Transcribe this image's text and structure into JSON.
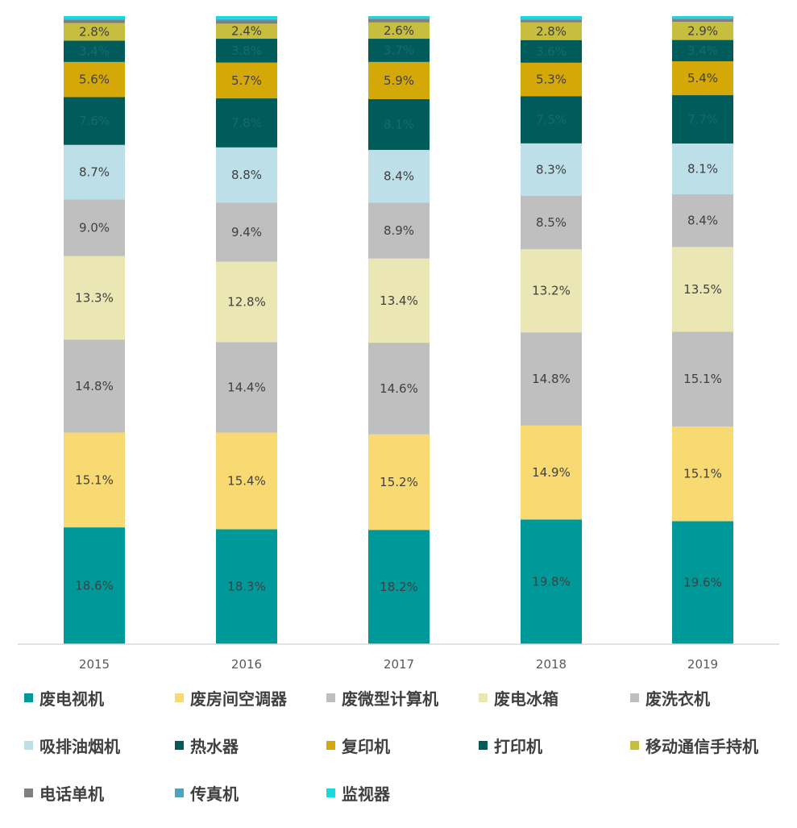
{
  "chart_data": {
    "type": "bar",
    "stacked": true,
    "categories": [
      "2015",
      "2016",
      "2017",
      "2018",
      "2019"
    ],
    "legend_position": "bottom",
    "grid": false,
    "ylim": [
      0,
      100
    ],
    "series": [
      {
        "name": "废电视机",
        "color": "#009999",
        "values": [
          18.6,
          18.3,
          18.2,
          19.8,
          19.6
        ],
        "labels": [
          "18.6%",
          "18.3%",
          "18.2%",
          "19.8%",
          "19.6%"
        ],
        "label_color": "#404040"
      },
      {
        "name": "废房间空调器",
        "color": "#F9DA72",
        "values": [
          15.1,
          15.4,
          15.2,
          14.9,
          15.1
        ],
        "labels": [
          "15.1%",
          "15.4%",
          "15.2%",
          "14.9%",
          "15.1%"
        ],
        "label_color": "#404040"
      },
      {
        "name": "废微型计算机",
        "color": "#BFBFBF",
        "values": [
          14.8,
          14.4,
          14.6,
          14.8,
          15.1
        ],
        "labels": [
          "14.8%",
          "14.4%",
          "14.6%",
          "14.8%",
          "15.1%"
        ],
        "label_color": "#404040"
      },
      {
        "name": "废电冰箱",
        "color": "#EBE7B5",
        "values": [
          13.3,
          12.8,
          13.4,
          13.2,
          13.5
        ],
        "labels": [
          "13.3%",
          "12.8%",
          "13.4%",
          "13.2%",
          "13.5%"
        ],
        "label_color": "#404040"
      },
      {
        "name": "废洗衣机",
        "color": "#BFBFBF",
        "values": [
          9.0,
          9.4,
          8.9,
          8.5,
          8.4
        ],
        "labels": [
          "9.0%",
          "9.4%",
          "8.9%",
          "8.5%",
          "8.4%"
        ],
        "label_color": "#404040"
      },
      {
        "name": "吸排油烟机",
        "color": "#BDDFE8",
        "values": [
          8.7,
          8.8,
          8.4,
          8.3,
          8.1
        ],
        "labels": [
          "8.7%",
          "8.8%",
          "8.4%",
          "8.3%",
          "8.1%"
        ],
        "label_color": "#404040"
      },
      {
        "name": "热水器",
        "color": "#005B5B",
        "values": [
          7.6,
          7.8,
          8.1,
          7.5,
          7.7
        ],
        "labels": [
          "7.6%",
          "7.8%",
          "8.1%",
          "7.5%",
          "7.7%"
        ],
        "label_color": "#1A6A6A"
      },
      {
        "name": "复印机",
        "color": "#D4A807",
        "values": [
          5.6,
          5.7,
          5.9,
          5.3,
          5.4
        ],
        "labels": [
          "5.6%",
          "5.7%",
          "5.9%",
          "5.3%",
          "5.4%"
        ],
        "label_color": "#404040"
      },
      {
        "name": "打印机",
        "color": "#005B5B",
        "values": [
          3.4,
          3.8,
          3.7,
          3.6,
          3.4
        ],
        "labels": [
          "3.4%",
          "3.8%",
          "3.7%",
          "3.6%",
          "3.4%"
        ],
        "label_color": "#1A6A6A"
      },
      {
        "name": "移动通信手持机",
        "color": "#C7BE3F",
        "values": [
          2.8,
          2.4,
          2.6,
          2.8,
          2.9
        ],
        "labels": [
          "2.8%",
          "2.4%",
          "2.6%",
          "2.8%",
          "2.9%"
        ],
        "label_color": "#404040"
      },
      {
        "name": "电话单机",
        "color": "#7F7F7F",
        "values": [
          0.5,
          0.5,
          0.5,
          0.4,
          0.4
        ],
        "labels": [],
        "label_color": "#404040"
      },
      {
        "name": "传真机",
        "color": "#4AA3BF",
        "values": [
          0.2,
          0.2,
          0.2,
          0.2,
          0.2
        ],
        "labels": [],
        "label_color": "#404040"
      },
      {
        "name": "监视器",
        "color": "#17D9E0",
        "values": [
          0.4,
          0.5,
          0.3,
          0.4,
          0.3
        ],
        "labels": [],
        "label_color": "#404040"
      }
    ]
  }
}
